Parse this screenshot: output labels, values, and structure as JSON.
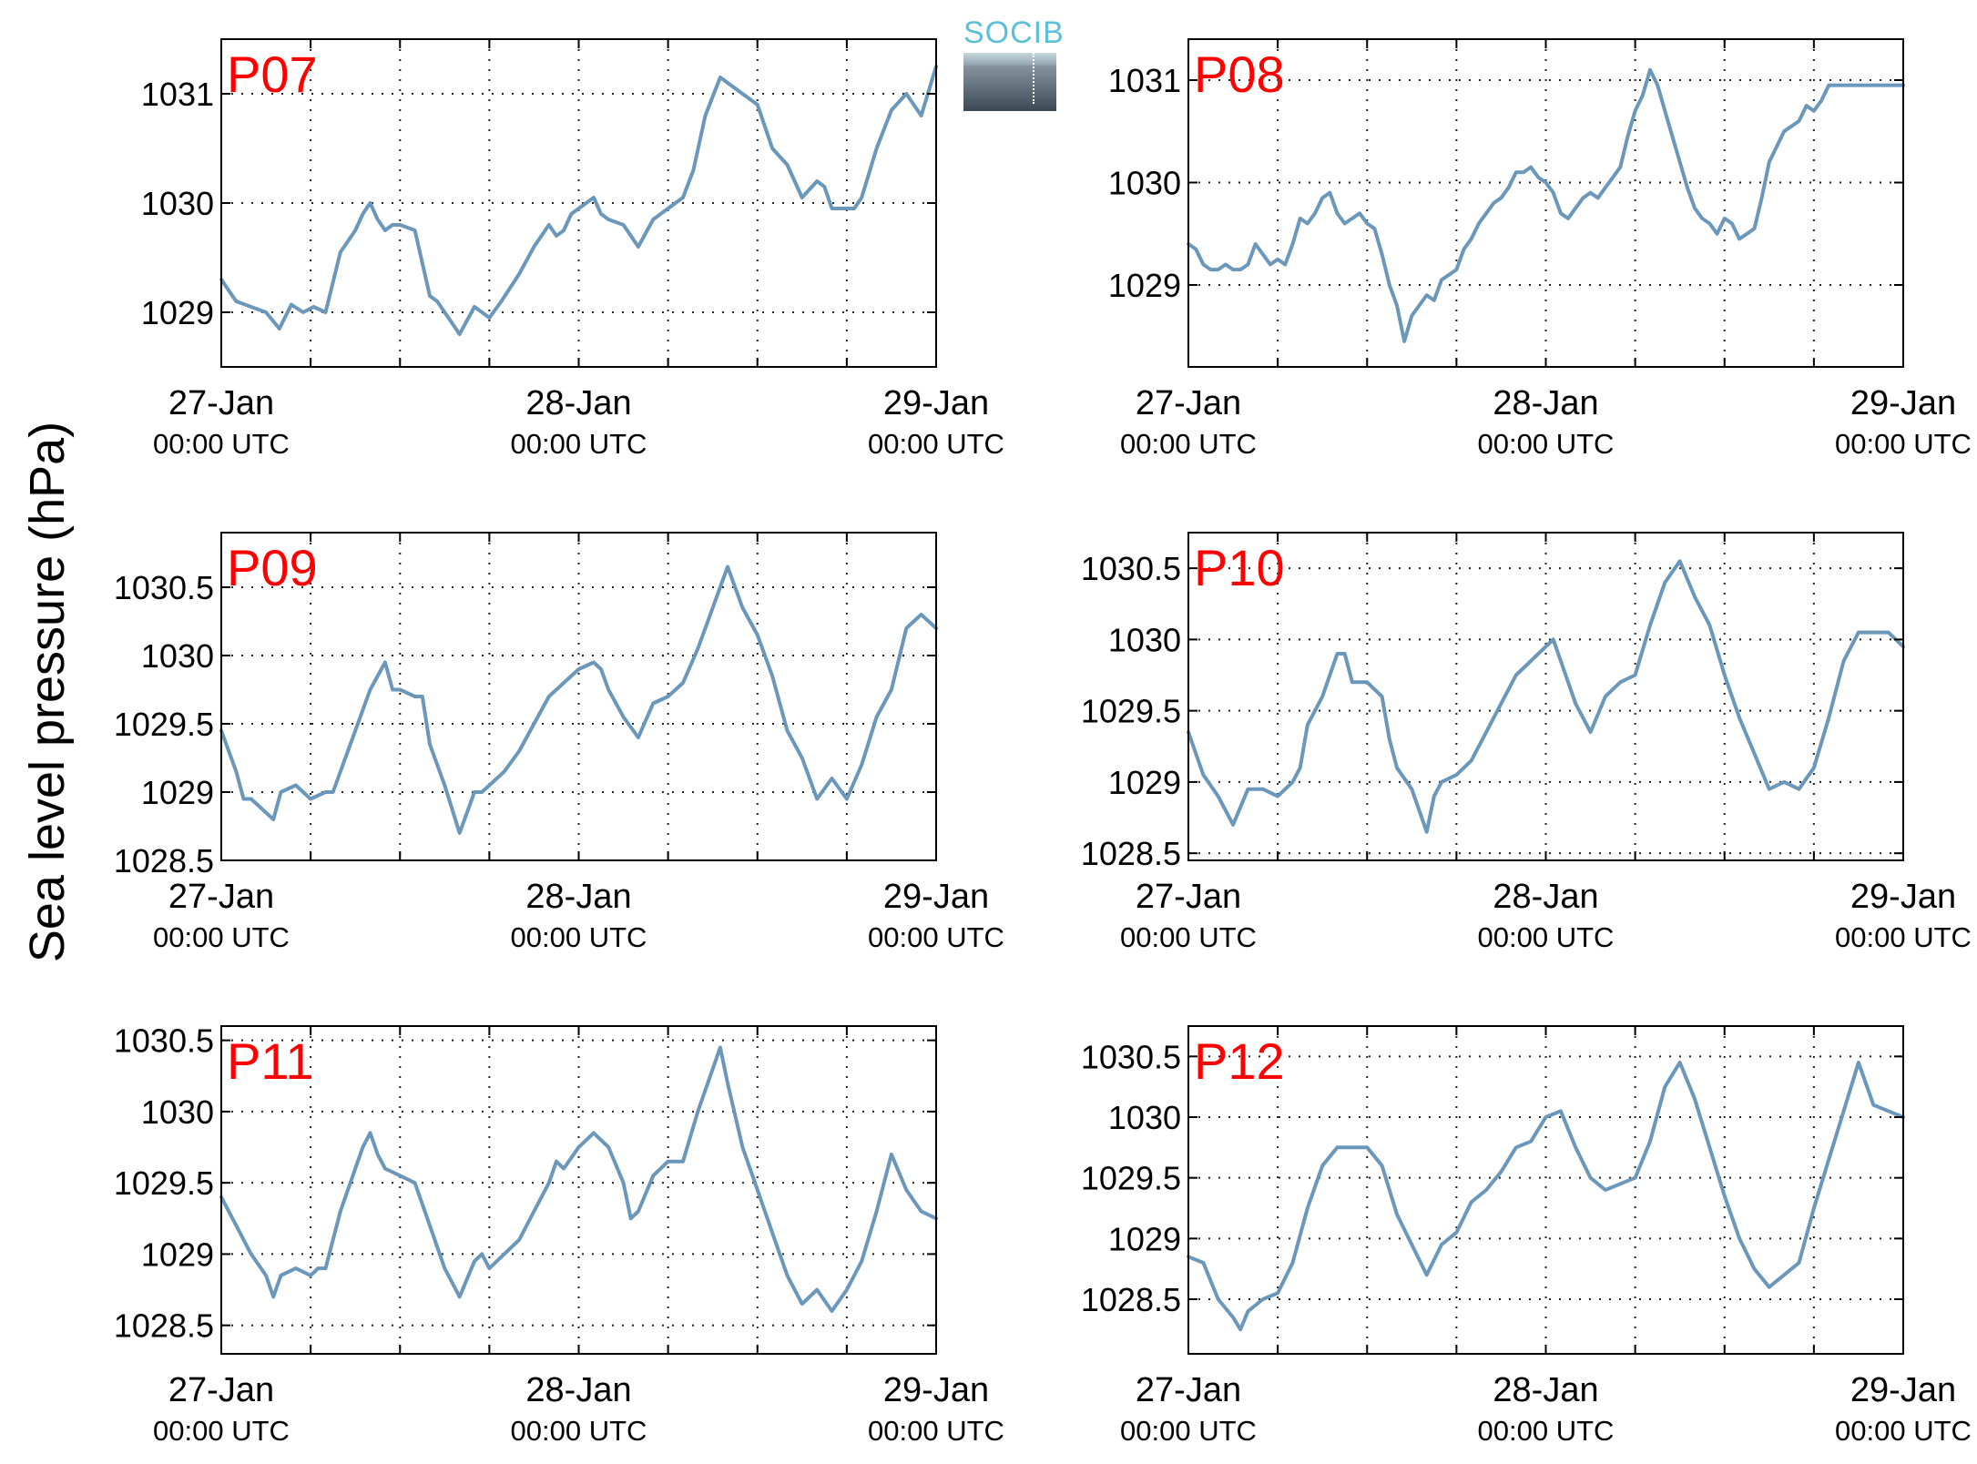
{
  "figure": {
    "ylabel": "Sea level pressure (hPa)",
    "line_color": "#6a97ba",
    "title_color": "#ff0000",
    "logo_text": "SOCIB"
  },
  "chart_data": [
    {
      "type": "line",
      "title": "P07",
      "ylabel": "Sea level pressure (hPa)",
      "xticks": [
        "27-Jan\n00:00 UTC",
        "28-Jan\n00:00 UTC",
        "29-Jan\n00:00 UTC"
      ],
      "xlim": [
        0,
        48
      ],
      "ylim": [
        1028.5,
        1031.5
      ],
      "yticks": [
        "1029",
        "1030",
        "1031"
      ],
      "ytick_values": [
        1029,
        1030,
        1031
      ],
      "grid": true,
      "series": [
        {
          "x": [
            0,
            1,
            2,
            3,
            3.9,
            4.7,
            5.5,
            6.2,
            7,
            8,
            9,
            9.5,
            10,
            10.5,
            11,
            11.5,
            12,
            13,
            13.5,
            14,
            14.5,
            15,
            16,
            17,
            18,
            18.8,
            20,
            21,
            22,
            22.5,
            23,
            23.5,
            24,
            24.5,
            25,
            25.5,
            26,
            27,
            28,
            29,
            30,
            31,
            31.7,
            32.5,
            33.5,
            34.5,
            36,
            37,
            38,
            39,
            40,
            40.5,
            41,
            41.5,
            42,
            42.5,
            43,
            44,
            45,
            46,
            47,
            48
          ],
          "y": [
            1029.3,
            1029.1,
            1029.05,
            1029.0,
            1028.85,
            1029.07,
            1029.0,
            1029.05,
            1029.0,
            1029.55,
            1029.75,
            1029.9,
            1030.0,
            1029.85,
            1029.75,
            1029.8,
            1029.8,
            1029.75,
            1029.45,
            1029.15,
            1029.1,
            1029.0,
            1028.8,
            1029.05,
            1028.95,
            1029.1,
            1029.35,
            1029.6,
            1029.8,
            1029.7,
            1029.75,
            1029.9,
            1029.95,
            1030.0,
            1030.05,
            1029.9,
            1029.85,
            1029.8,
            1029.6,
            1029.85,
            1029.95,
            1030.05,
            1030.3,
            1030.8,
            1031.15,
            1031.05,
            1030.9,
            1030.5,
            1030.35,
            1030.05,
            1030.2,
            1030.15,
            1029.95,
            1029.95,
            1029.95,
            1029.95,
            1030.05,
            1030.5,
            1030.85,
            1031.0,
            1030.8,
            1031.25
          ]
        }
      ]
    },
    {
      "type": "line",
      "title": "P08",
      "ylabel": "Sea level pressure (hPa)",
      "xticks": [
        "27-Jan\n00:00 UTC",
        "28-Jan\n00:00 UTC",
        "29-Jan\n00:00 UTC"
      ],
      "xlim": [
        0,
        48
      ],
      "ylim": [
        1028.2,
        1031.4
      ],
      "yticks": [
        "1029",
        "1030",
        "1031"
      ],
      "ytick_values": [
        1029,
        1030,
        1031
      ],
      "grid": true,
      "series": [
        {
          "x": [
            0,
            0.5,
            1,
            1.5,
            2,
            2.5,
            3,
            3.5,
            4,
            4.5,
            5,
            5.5,
            6,
            6.5,
            7,
            7.5,
            8,
            8.5,
            9,
            9.5,
            10,
            10.5,
            11,
            11.5,
            12,
            12.5,
            13,
            13.5,
            14,
            14.5,
            15,
            15.5,
            16,
            16.5,
            17,
            17.5,
            18,
            18.5,
            19,
            19.5,
            20,
            20.5,
            21,
            21.5,
            22,
            22.5,
            23,
            23.5,
            24,
            24.5,
            25,
            25.5,
            26,
            26.5,
            27,
            27.5,
            28,
            28.5,
            29,
            29.5,
            30,
            30.5,
            31,
            31.5,
            32,
            32.5,
            33,
            33.5,
            34,
            34.5,
            35,
            35.5,
            36,
            36.5,
            37,
            37.5,
            38,
            38.5,
            39,
            39.5,
            40,
            40.5,
            41,
            41.5,
            42,
            42.5,
            43,
            43.5,
            44,
            44.5,
            45,
            45.5,
            46,
            46.5,
            47,
            47.5,
            48
          ],
          "y": [
            1029.4,
            1029.35,
            1029.2,
            1029.15,
            1029.15,
            1029.2,
            1029.15,
            1029.15,
            1029.2,
            1029.4,
            1029.3,
            1029.2,
            1029.25,
            1029.2,
            1029.4,
            1029.65,
            1029.6,
            1029.7,
            1029.85,
            1029.9,
            1029.7,
            1029.6,
            1029.65,
            1029.7,
            1029.6,
            1029.55,
            1029.3,
            1029.0,
            1028.8,
            1028.45,
            1028.7,
            1028.8,
            1028.9,
            1028.85,
            1029.05,
            1029.1,
            1029.15,
            1029.35,
            1029.45,
            1029.6,
            1029.7,
            1029.8,
            1029.85,
            1029.95,
            1030.1,
            1030.1,
            1030.15,
            1030.05,
            1030.0,
            1029.9,
            1029.7,
            1029.65,
            1029.75,
            1029.85,
            1029.9,
            1029.85,
            1029.95,
            1030.05,
            1030.15,
            1030.45,
            1030.7,
            1030.85,
            1031.1,
            1030.95,
            1030.7,
            1030.45,
            1030.2,
            1029.95,
            1029.75,
            1029.65,
            1029.6,
            1029.5,
            1029.65,
            1029.6,
            1029.45,
            1029.5,
            1029.55,
            1029.85,
            1030.2,
            1030.35,
            1030.5,
            1030.55,
            1030.6,
            1030.75,
            1030.7,
            1030.8,
            1030.95,
            1030.95,
            1030.95,
            1030.95,
            1030.95,
            1030.95,
            1030.95,
            1030.95,
            1030.95,
            1030.95,
            1030.95
          ]
        }
      ]
    },
    {
      "type": "line",
      "title": "P09",
      "ylabel": "Sea level pressure (hPa)",
      "xticks": [
        "27-Jan\n00:00 UTC",
        "28-Jan\n00:00 UTC",
        "29-Jan\n00:00 UTC"
      ],
      "xlim": [
        0,
        48
      ],
      "ylim": [
        1028.5,
        1030.9
      ],
      "yticks": [
        "1028.5",
        "1029",
        "1029.5",
        "1030",
        "1030.5"
      ],
      "ytick_values": [
        1028.5,
        1029,
        1029.5,
        1030,
        1030.5
      ],
      "grid": true,
      "series": [
        {
          "x": [
            0,
            1,
            1.5,
            2,
            2.5,
            3.5,
            4,
            5,
            6,
            7,
            7.5,
            8,
            9,
            10,
            11,
            11.5,
            12,
            13,
            13.5,
            14,
            15,
            16,
            17,
            17.5,
            18,
            19,
            20,
            21,
            22,
            23,
            24,
            25,
            25.5,
            26,
            27,
            28,
            29,
            30,
            31,
            32,
            33,
            34,
            35,
            36,
            37,
            38,
            39,
            40,
            41,
            42,
            43,
            44,
            45,
            46,
            47,
            48
          ],
          "y": [
            1029.45,
            1029.15,
            1028.95,
            1028.95,
            1028.9,
            1028.8,
            1029.0,
            1029.05,
            1028.95,
            1029.0,
            1029.0,
            1029.15,
            1029.45,
            1029.75,
            1029.95,
            1029.75,
            1029.75,
            1029.7,
            1029.7,
            1029.35,
            1029.05,
            1028.7,
            1029.0,
            1029.0,
            1029.05,
            1029.15,
            1029.3,
            1029.5,
            1029.7,
            1029.8,
            1029.9,
            1029.95,
            1029.9,
            1029.75,
            1029.55,
            1029.4,
            1029.65,
            1029.7,
            1029.8,
            1030.05,
            1030.35,
            1030.65,
            1030.35,
            1030.15,
            1029.85,
            1029.45,
            1029.25,
            1028.95,
            1029.1,
            1028.95,
            1029.2,
            1029.55,
            1029.75,
            1030.2,
            1030.3,
            1030.2
          ]
        }
      ]
    },
    {
      "type": "line",
      "title": "P10",
      "ylabel": "Sea level pressure (hPa)",
      "xticks": [
        "27-Jan\n00:00 UTC",
        "28-Jan\n00:00 UTC",
        "29-Jan\n00:00 UTC"
      ],
      "xlim": [
        0,
        48
      ],
      "ylim": [
        1028.45,
        1030.75
      ],
      "yticks": [
        "1028.5",
        "1029",
        "1029.5",
        "1030",
        "1030.5"
      ],
      "ytick_values": [
        1028.5,
        1029,
        1029.5,
        1030,
        1030.5
      ],
      "grid": true,
      "series": [
        {
          "x": [
            0,
            1,
            2,
            3,
            4,
            5,
            6,
            7,
            7.5,
            8,
            9,
            10,
            10.5,
            11,
            12,
            12.5,
            13,
            13.5,
            14,
            15,
            16,
            16.5,
            17,
            18,
            19,
            20,
            21,
            22,
            23,
            24,
            24.5,
            25,
            26,
            27,
            28,
            29,
            30,
            31,
            32,
            33,
            34,
            35,
            36,
            37,
            38,
            39,
            40,
            41,
            42,
            43,
            44,
            45,
            46,
            47,
            48
          ],
          "y": [
            1029.35,
            1029.05,
            1028.9,
            1028.7,
            1028.95,
            1028.95,
            1028.9,
            1029.0,
            1029.1,
            1029.4,
            1029.6,
            1029.9,
            1029.9,
            1029.7,
            1029.7,
            1029.65,
            1029.6,
            1029.3,
            1029.1,
            1028.95,
            1028.65,
            1028.9,
            1029.0,
            1029.05,
            1029.15,
            1029.35,
            1029.55,
            1029.75,
            1029.85,
            1029.95,
            1030.0,
            1029.85,
            1029.55,
            1029.35,
            1029.6,
            1029.7,
            1029.75,
            1030.1,
            1030.4,
            1030.55,
            1030.3,
            1030.1,
            1029.75,
            1029.45,
            1029.2,
            1028.95,
            1029.0,
            1028.95,
            1029.1,
            1029.45,
            1029.85,
            1030.05,
            1030.05,
            1030.05,
            1029.95
          ]
        }
      ]
    },
    {
      "type": "line",
      "title": "P11",
      "ylabel": "Sea level pressure (hPa)",
      "xticks": [
        "27-Jan\n00:00 UTC",
        "28-Jan\n00:00 UTC",
        "29-Jan\n00:00 UTC"
      ],
      "xlim": [
        0,
        48
      ],
      "ylim": [
        1028.3,
        1030.6
      ],
      "yticks": [
        "1028.5",
        "1029",
        "1029.5",
        "1030",
        "1030.5"
      ],
      "ytick_values": [
        1028.5,
        1029,
        1029.5,
        1030,
        1030.5
      ],
      "grid": true,
      "series": [
        {
          "x": [
            0,
            1,
            2,
            3,
            3.5,
            4,
            5,
            6,
            6.5,
            7,
            8,
            9,
            9.5,
            10,
            10.5,
            11,
            12,
            13,
            14,
            15,
            16,
            17,
            17.5,
            18,
            19,
            20,
            21,
            22,
            22.5,
            23,
            24,
            25,
            26,
            27,
            27.5,
            28,
            29,
            30,
            31,
            32,
            33,
            33.5,
            34,
            35,
            36,
            37,
            38,
            39,
            40,
            41,
            42,
            43,
            44,
            45,
            46,
            47,
            48
          ],
          "y": [
            1029.4,
            1029.2,
            1029.0,
            1028.85,
            1028.7,
            1028.85,
            1028.9,
            1028.85,
            1028.9,
            1028.9,
            1029.3,
            1029.6,
            1029.75,
            1029.85,
            1029.7,
            1029.6,
            1029.55,
            1029.5,
            1029.2,
            1028.9,
            1028.7,
            1028.95,
            1029.0,
            1028.9,
            1029.0,
            1029.1,
            1029.3,
            1029.5,
            1029.65,
            1029.6,
            1029.75,
            1029.85,
            1029.75,
            1029.5,
            1029.25,
            1029.3,
            1029.55,
            1029.65,
            1029.65,
            1030.0,
            1030.3,
            1030.45,
            1030.2,
            1029.75,
            1029.45,
            1029.15,
            1028.85,
            1028.65,
            1028.75,
            1028.6,
            1028.75,
            1028.95,
            1029.3,
            1029.7,
            1029.45,
            1029.3,
            1029.25
          ]
        }
      ]
    },
    {
      "type": "line",
      "title": "P12",
      "ylabel": "Sea level pressure (hPa)",
      "xticks": [
        "27-Jan\n00:00 UTC",
        "28-Jan\n00:00 UTC",
        "29-Jan\n00:00 UTC"
      ],
      "xlim": [
        0,
        48
      ],
      "ylim": [
        1028.05,
        1030.75
      ],
      "yticks": [
        "1028.5",
        "1029",
        "1029.5",
        "1030",
        "1030.5"
      ],
      "ytick_values": [
        1028.5,
        1029,
        1029.5,
        1030,
        1030.5
      ],
      "grid": true,
      "series": [
        {
          "x": [
            0,
            1,
            2,
            3,
            3.5,
            4,
            5,
            6,
            7,
            8,
            9,
            10,
            11,
            12,
            13,
            14,
            15,
            16,
            17,
            18,
            19,
            20,
            21,
            22,
            23,
            24,
            25,
            26,
            27,
            28,
            29,
            30,
            31,
            32,
            33,
            34,
            35,
            36,
            37,
            38,
            39,
            40,
            41,
            42,
            43,
            44,
            45,
            46,
            47,
            48
          ],
          "y": [
            1028.85,
            1028.8,
            1028.5,
            1028.35,
            1028.25,
            1028.4,
            1028.5,
            1028.55,
            1028.8,
            1029.25,
            1029.6,
            1029.75,
            1029.75,
            1029.75,
            1029.6,
            1029.2,
            1028.95,
            1028.7,
            1028.95,
            1029.05,
            1029.3,
            1029.4,
            1029.55,
            1029.75,
            1029.8,
            1030.0,
            1030.05,
            1029.75,
            1029.5,
            1029.4,
            1029.45,
            1029.5,
            1029.8,
            1030.25,
            1030.45,
            1030.15,
            1029.75,
            1029.35,
            1029.0,
            1028.75,
            1028.6,
            1028.7,
            1028.8,
            1029.25,
            1029.65,
            1030.05,
            1030.45,
            1030.1,
            1030.05,
            1030.0
          ]
        }
      ]
    }
  ]
}
